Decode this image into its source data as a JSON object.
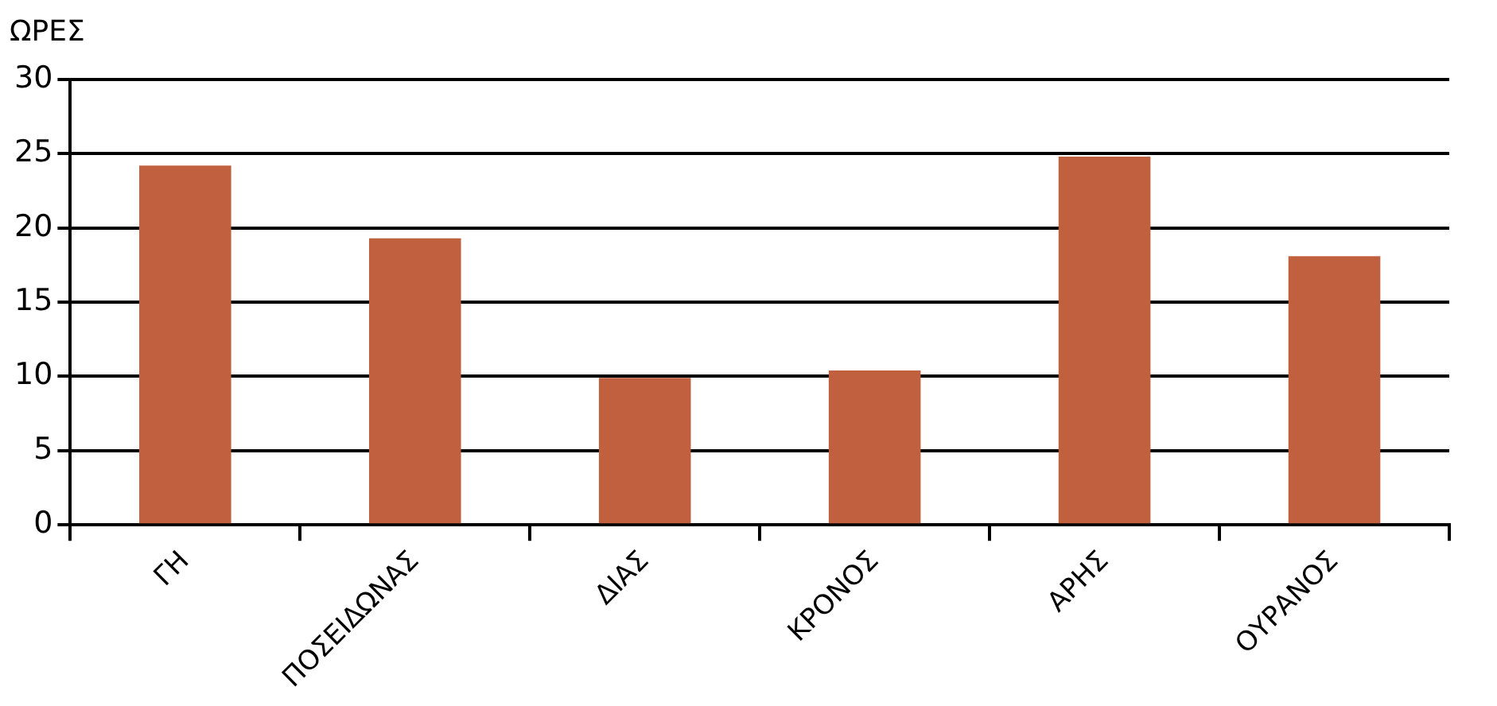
{
  "chart_data": {
    "type": "bar",
    "ylabel": "ΩΡΕΣ",
    "categories": [
      "ΓΗ",
      "ΠΟΣΕΙΔΩΝΑΣ",
      "ΔΙΑΣ",
      "ΚΡΟΝΟΣ",
      "ΑΡΗΣ",
      "ΟΥΡΑΝΟΣ"
    ],
    "values": [
      24.2,
      19.3,
      9.9,
      10.4,
      24.8,
      18.1
    ],
    "color": "#c0603f",
    "ylim": [
      0,
      30
    ],
    "yticks": [
      0,
      5,
      10,
      15,
      20,
      25,
      30
    ],
    "grid": "y",
    "legend": false
  }
}
